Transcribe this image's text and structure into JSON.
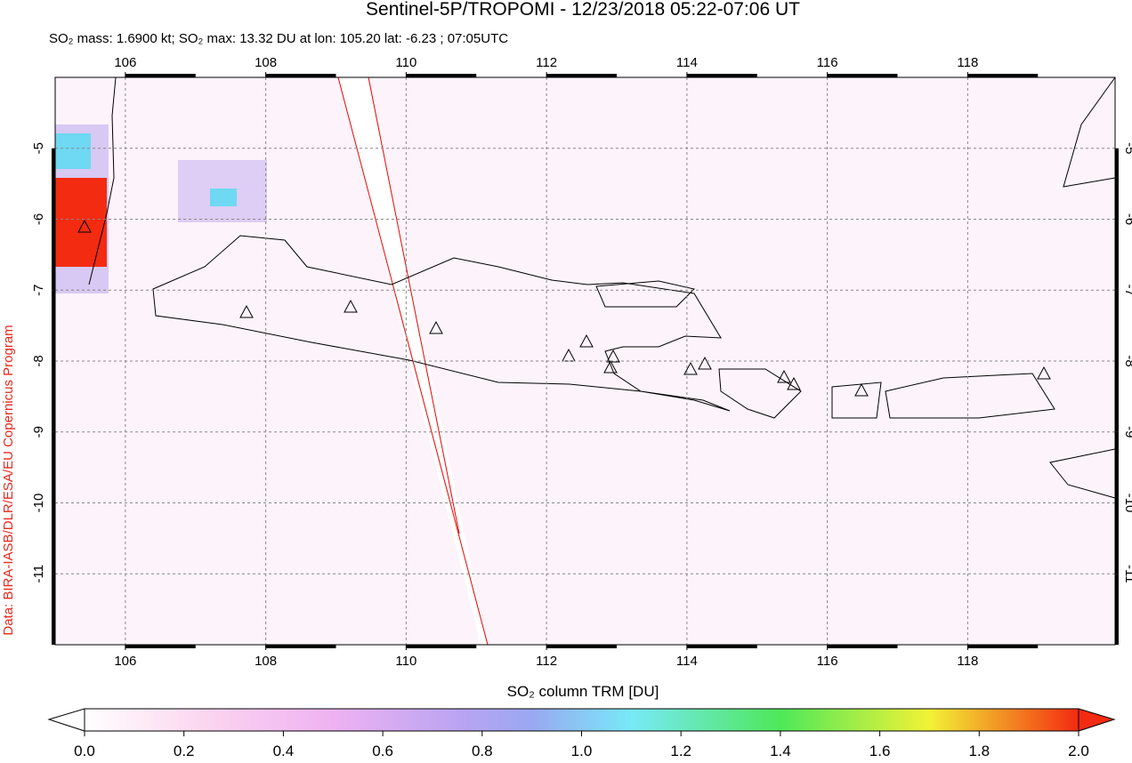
{
  "header": {
    "title": "Sentinel-5P/TROPOMI - 12/23/2018 05:22-07:06 UT",
    "subtitle": "SO₂ mass: 1.6900 kt; SO₂ max: 13.32 DU at lon: 105.20 lat: -6.23 ; 07:05UTC"
  },
  "credit": "Data: BIRA-IASB/DLR/ESA/EU Copernicus Program",
  "map": {
    "xlim": [
      105,
      120.1
    ],
    "ylim": [
      -4,
      -12
    ],
    "xticks": [
      106,
      108,
      110,
      112,
      114,
      116,
      118
    ],
    "yticks": [
      -5,
      -6,
      -7,
      -8,
      -9,
      -10,
      -11
    ],
    "grid": true
  },
  "colorbar": {
    "label": "SO₂ column TRM [DU]",
    "lim": [
      0,
      2
    ],
    "ticks": [
      {
        "value": 0,
        "label": "0.0"
      },
      {
        "value": 0.2,
        "label": "0.2"
      },
      {
        "value": 0.4,
        "label": "0.4"
      },
      {
        "value": 0.6,
        "label": "0.6"
      },
      {
        "value": 0.8,
        "label": "0.8"
      },
      {
        "value": 1,
        "label": "1.0"
      },
      {
        "value": 1.2,
        "label": "1.2"
      },
      {
        "value": 1.4,
        "label": "1.4"
      },
      {
        "value": 1.6,
        "label": "1.6"
      },
      {
        "value": 1.8,
        "label": "1.8"
      },
      {
        "value": 2,
        "label": "2.0"
      }
    ]
  }
}
